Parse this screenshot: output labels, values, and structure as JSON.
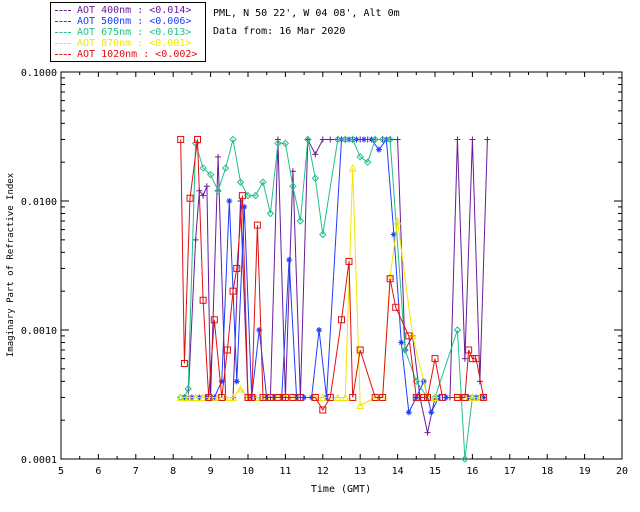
{
  "site_info": "PML, N 50 22', W 04 08', Alt 0m",
  "date_info": "Data from: 16 Mar 2020",
  "legend": [
    {
      "label": "AOT  400nm : <0.014>",
      "color": "#6a1b9a"
    },
    {
      "label": "AOT  500nm : <0.006>",
      "color": "#1e3cff"
    },
    {
      "label": "AOT  675nm : <0.013>",
      "color": "#20c08a"
    },
    {
      "label": "AOT  870nm : <0.001>",
      "color": "#f2e600"
    },
    {
      "label": "AOT 1020nm : <0.002>",
      "color": "#e01010"
    }
  ],
  "chart_data": {
    "type": "line",
    "xlabel": "Time (GMT)",
    "ylabel": "Imaginary Part of Refractive Index",
    "xlim": [
      5,
      20
    ],
    "ylim": [
      0.0001,
      0.1
    ],
    "yscale": "log",
    "x_ticks": [
      5,
      6,
      7,
      8,
      9,
      10,
      11,
      12,
      13,
      14,
      15,
      16,
      17,
      18,
      19,
      20
    ],
    "y_ticks": [
      0.0001,
      0.001,
      0.01,
      0.1
    ],
    "y_tick_labels": [
      "0.0001",
      "0.0010",
      "0.0100",
      "0.1000"
    ],
    "series": [
      {
        "name": "AOT  400nm",
        "color": "#6a1b9a",
        "marker": "plus",
        "x": [
          8.3,
          8.4,
          8.6,
          8.7,
          8.8,
          8.9,
          9.0,
          9.2,
          9.4,
          9.6,
          9.8,
          10.0,
          10.2,
          10.4,
          10.6,
          10.8,
          11.0,
          11.2,
          11.4,
          11.6,
          11.8,
          12.0,
          12.2,
          12.4,
          12.6,
          12.8,
          13.0,
          13.2,
          13.4,
          13.6,
          13.8,
          14.0,
          14.2,
          14.4,
          14.6,
          14.8,
          15.0,
          15.2,
          15.4,
          15.6,
          15.8,
          16.0,
          16.2,
          16.4
        ],
        "y": [
          0.0003,
          0.0003,
          0.005,
          0.012,
          0.011,
          0.013,
          0.0003,
          0.022,
          0.0003,
          0.0003,
          0.01,
          0.0003,
          0.0003,
          0.0003,
          0.0003,
          0.03,
          0.0003,
          0.017,
          0.0003,
          0.03,
          0.023,
          0.03,
          0.03,
          0.03,
          0.03,
          0.03,
          0.03,
          0.03,
          0.03,
          0.03,
          0.03,
          0.03,
          0.0007,
          0.0009,
          0.0003,
          0.00016,
          0.0003,
          0.0003,
          0.0003,
          0.03,
          0.0006,
          0.03,
          0.0004,
          0.03
        ]
      },
      {
        "name": "AOT  500nm",
        "color": "#1e3cff",
        "marker": "star",
        "x": [
          8.3,
          8.5,
          8.7,
          8.9,
          9.1,
          9.3,
          9.5,
          9.7,
          9.9,
          10.1,
          10.3,
          10.5,
          10.7,
          10.9,
          11.1,
          11.3,
          11.5,
          11.7,
          11.9,
          12.1,
          12.5,
          12.7,
          12.9,
          13.1,
          13.3,
          13.5,
          13.7,
          13.9,
          14.1,
          14.3,
          14.5,
          14.7,
          14.9,
          15.1,
          15.3,
          15.7,
          15.9,
          16.1,
          16.3
        ],
        "y": [
          0.0003,
          0.0003,
          0.0003,
          0.0003,
          0.0003,
          0.0004,
          0.01,
          0.0004,
          0.009,
          0.0003,
          0.001,
          0.0003,
          0.0003,
          0.0003,
          0.0035,
          0.0003,
          0.0003,
          0.0003,
          0.001,
          0.0003,
          0.03,
          0.03,
          0.03,
          0.03,
          0.03,
          0.025,
          0.03,
          0.0055,
          0.0008,
          0.00023,
          0.0003,
          0.0004,
          0.00023,
          0.0003,
          0.0003,
          0.0003,
          0.0003,
          0.0003,
          0.0003
        ]
      },
      {
        "name": "AOT  675nm",
        "color": "#20c08a",
        "marker": "diamond",
        "x": [
          8.2,
          8.3,
          8.4,
          8.6,
          8.8,
          9.0,
          9.2,
          9.4,
          9.6,
          9.8,
          10.0,
          10.2,
          10.4,
          10.6,
          10.8,
          11.0,
          11.2,
          11.4,
          11.6,
          11.8,
          12.0,
          12.4,
          12.6,
          12.8,
          13.0,
          13.2,
          13.4,
          13.6,
          13.8,
          14.2,
          14.5,
          14.8,
          15.0,
          15.6,
          15.8,
          16.0,
          16.2
        ],
        "y": [
          0.0003,
          0.0003,
          0.00035,
          0.028,
          0.018,
          0.016,
          0.012,
          0.018,
          0.03,
          0.014,
          0.011,
          0.011,
          0.014,
          0.008,
          0.028,
          0.028,
          0.013,
          0.007,
          0.03,
          0.015,
          0.0055,
          0.03,
          0.03,
          0.03,
          0.022,
          0.02,
          0.03,
          0.03,
          0.03,
          0.0007,
          0.0004,
          0.0003,
          0.0003,
          0.001,
          0.0001,
          0.0003,
          0.0003
        ]
      },
      {
        "name": "AOT  870nm",
        "color": "#f2e600",
        "marker": "triangle",
        "x": [
          8.2,
          8.4,
          8.6,
          8.8,
          9.0,
          9.2,
          9.4,
          9.6,
          9.8,
          10.0,
          10.2,
          10.4,
          10.6,
          10.8,
          11.0,
          11.2,
          11.8,
          12.0,
          12.4,
          12.6,
          12.8,
          13.0,
          13.4,
          13.6,
          13.8,
          14.0,
          14.4,
          14.8,
          15.0,
          15.6,
          15.8,
          16.0,
          16.2
        ],
        "y": [
          0.0003,
          0.0003,
          0.0003,
          0.0003,
          0.0003,
          0.0003,
          0.0003,
          0.0003,
          0.00035,
          0.0003,
          0.0003,
          0.0003,
          0.0003,
          0.0003,
          0.0003,
          0.0003,
          0.0003,
          0.0003,
          0.0003,
          0.0003,
          0.018,
          0.00026,
          0.0003,
          0.0003,
          0.0026,
          0.007,
          0.0009,
          0.0003,
          0.0003,
          0.0003,
          0.0003,
          0.0003,
          0.0003
        ]
      },
      {
        "name": "AOT 1020nm",
        "color": "#e01010",
        "marker": "square",
        "x": [
          8.2,
          8.3,
          8.45,
          8.65,
          8.8,
          8.95,
          9.1,
          9.3,
          9.45,
          9.6,
          9.7,
          9.85,
          10.0,
          10.1,
          10.25,
          10.4,
          10.6,
          10.8,
          11.0,
          11.2,
          11.4,
          11.8,
          12.0,
          12.2,
          12.5,
          12.7,
          12.8,
          13.0,
          13.4,
          13.6,
          13.8,
          13.95,
          14.3,
          14.5,
          14.7,
          14.8,
          15.0,
          15.2,
          15.6,
          15.8,
          15.9,
          16.0,
          16.1,
          16.3
        ],
        "y": [
          0.03,
          0.00055,
          0.0105,
          0.03,
          0.0017,
          0.0003,
          0.0012,
          0.0003,
          0.0007,
          0.002,
          0.003,
          0.011,
          0.0003,
          0.0003,
          0.0065,
          0.0003,
          0.0003,
          0.0003,
          0.0003,
          0.0003,
          0.0003,
          0.0003,
          0.00024,
          0.0003,
          0.0012,
          0.0034,
          0.0003,
          0.0007,
          0.0003,
          0.0003,
          0.0025,
          0.0015,
          0.0009,
          0.0003,
          0.0003,
          0.0003,
          0.0006,
          0.0003,
          0.0003,
          0.0003,
          0.0007,
          0.0006,
          0.0006,
          0.0003
        ]
      }
    ]
  }
}
